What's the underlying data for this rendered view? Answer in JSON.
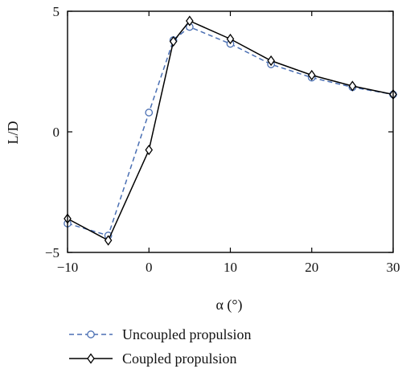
{
  "chart_data": {
    "type": "line",
    "title": "",
    "xlabel": "α (°)",
    "ylabel": "L/D",
    "xlim": [
      -10,
      30
    ],
    "ylim": [
      -5,
      5
    ],
    "x_ticks": [
      -10,
      0,
      10,
      20,
      30
    ],
    "y_ticks": [
      -5,
      0,
      5
    ],
    "x_tick_labels": [
      "−10",
      "0",
      "10",
      "20",
      "30"
    ],
    "y_tick_labels": [
      "−5",
      "0",
      "5"
    ],
    "grid": false,
    "legend_position": "bottom-left",
    "x": [
      -10,
      -5,
      0,
      3,
      5,
      10,
      15,
      20,
      25,
      30
    ],
    "series": [
      {
        "name": "Uncoupled propulsion",
        "color": "#4a6fb3",
        "line_style": "dashed",
        "marker": "circle",
        "values": [
          -3.8,
          -4.3,
          0.8,
          3.8,
          4.35,
          3.65,
          2.8,
          2.25,
          1.85,
          1.55
        ]
      },
      {
        "name": "Coupled propulsion",
        "color": "#000000",
        "line_style": "solid",
        "marker": "diamond",
        "values": [
          -3.6,
          -4.5,
          -0.75,
          3.75,
          4.6,
          3.85,
          2.95,
          2.35,
          1.9,
          1.55
        ]
      }
    ]
  }
}
